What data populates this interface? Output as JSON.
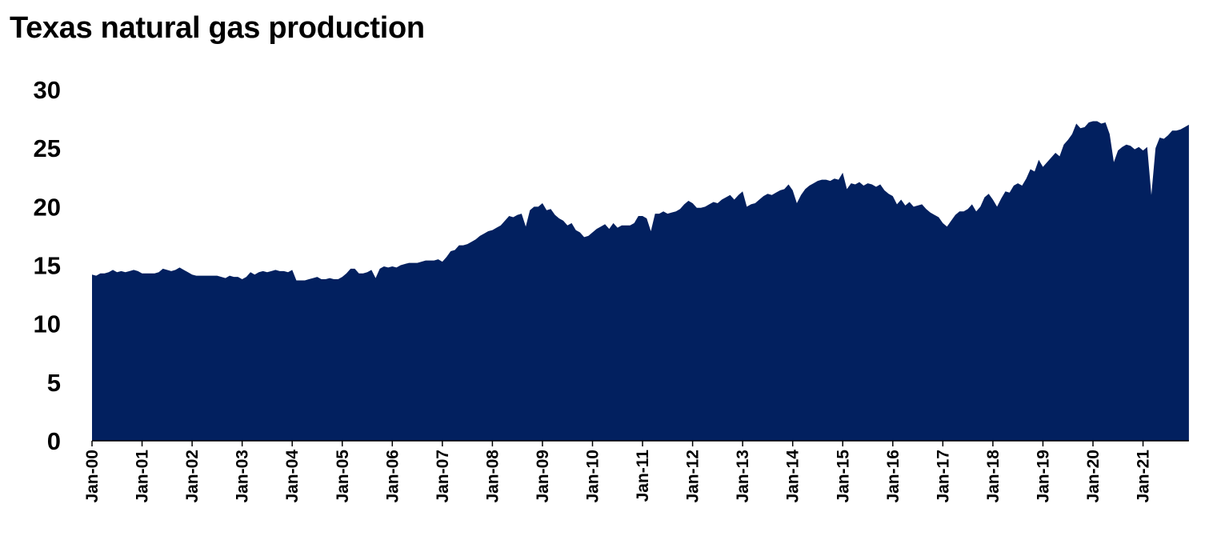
{
  "chart_data": {
    "type": "area",
    "title": "Texas natural gas production",
    "xlabel": "",
    "ylabel": "",
    "ylim": [
      0,
      30
    ],
    "yticks": [
      0,
      5,
      10,
      15,
      20,
      25,
      30
    ],
    "xtick_labels": [
      "Jan-00",
      "Jan-01",
      "Jan-02",
      "Jan-03",
      "Jan-04",
      "Jan-05",
      "Jan-06",
      "Jan-07",
      "Jan-08",
      "Jan-09",
      "Jan-10",
      "Jan-11",
      "Jan-12",
      "Jan-13",
      "Jan-14",
      "Jan-15",
      "Jan-16",
      "Jan-17",
      "Jan-18",
      "Jan-19",
      "Jan-20",
      "Jan-21"
    ],
    "grid": false,
    "legend": "none",
    "fill_color": "#02205f",
    "start": "Jan-00",
    "frequency": "monthly",
    "series": [
      {
        "values": [
          14.2,
          14.1,
          14.3,
          14.3,
          14.4,
          14.6,
          14.4,
          14.5,
          14.4,
          14.5,
          14.6,
          14.5,
          14.3,
          14.3,
          14.3,
          14.3,
          14.4,
          14.7,
          14.6,
          14.5,
          14.6,
          14.8,
          14.6,
          14.4,
          14.2,
          14.1,
          14.1,
          14.1,
          14.1,
          14.1,
          14.1,
          14.0,
          13.9,
          14.1,
          14.0,
          14.0,
          13.8,
          14.0,
          14.4,
          14.2,
          14.4,
          14.5,
          14.4,
          14.5,
          14.6,
          14.5,
          14.5,
          14.4,
          14.6,
          13.7,
          13.7,
          13.7,
          13.8,
          13.9,
          14.0,
          13.8,
          13.8,
          13.9,
          13.8,
          13.8,
          14.0,
          14.3,
          14.7,
          14.7,
          14.3,
          14.3,
          14.4,
          14.6,
          13.9,
          14.7,
          14.9,
          14.8,
          14.9,
          14.8,
          15.0,
          15.1,
          15.2,
          15.2,
          15.2,
          15.3,
          15.4,
          15.4,
          15.4,
          15.5,
          15.3,
          15.7,
          16.2,
          16.3,
          16.7,
          16.7,
          16.8,
          17.0,
          17.2,
          17.5,
          17.7,
          17.9,
          18.0,
          18.2,
          18.4,
          18.8,
          19.2,
          19.1,
          19.3,
          19.4,
          18.3,
          19.7,
          20.0,
          20.0,
          20.3,
          19.7,
          19.8,
          19.3,
          19.0,
          18.8,
          18.4,
          18.6,
          18.0,
          17.8,
          17.4,
          17.5,
          17.8,
          18.1,
          18.3,
          18.5,
          18.1,
          18.6,
          18.2,
          18.4,
          18.4,
          18.4,
          18.6,
          19.2,
          19.2,
          19.0,
          17.9,
          19.4,
          19.4,
          19.6,
          19.4,
          19.5,
          19.6,
          19.8,
          20.2,
          20.5,
          20.3,
          19.9,
          19.9,
          20.0,
          20.2,
          20.4,
          20.3,
          20.6,
          20.8,
          21.0,
          20.6,
          21.0,
          21.3,
          20.0,
          20.2,
          20.3,
          20.6,
          20.9,
          21.1,
          21.0,
          21.2,
          21.4,
          21.5,
          21.9,
          21.4,
          20.3,
          21.0,
          21.5,
          21.8,
          22.0,
          22.2,
          22.3,
          22.3,
          22.2,
          22.4,
          22.3,
          22.9,
          21.5,
          22.0,
          21.9,
          22.1,
          21.8,
          22.0,
          21.9,
          21.7,
          21.9,
          21.4,
          21.1,
          20.9,
          20.2,
          20.6,
          20.1,
          20.4,
          20.0,
          20.1,
          20.2,
          19.8,
          19.5,
          19.3,
          19.1,
          18.6,
          18.3,
          18.8,
          19.3,
          19.6,
          19.6,
          19.8,
          20.2,
          19.6,
          20.0,
          20.8,
          21.1,
          20.6,
          20.0,
          20.7,
          21.3,
          21.2,
          21.8,
          22.0,
          21.8,
          22.4,
          23.2,
          23.0,
          24.0,
          23.4,
          23.8,
          24.2,
          24.6,
          24.3,
          25.3,
          25.7,
          26.2,
          27.1,
          26.7,
          26.8,
          27.2,
          27.3,
          27.3,
          27.1,
          27.2,
          26.2,
          23.8,
          24.8,
          25.1,
          25.3,
          25.2,
          24.9,
          25.1,
          24.8,
          25.1,
          21.0,
          25.0,
          25.9,
          25.8,
          26.1,
          26.5,
          26.5,
          26.6,
          26.8,
          27.0
        ]
      }
    ]
  }
}
